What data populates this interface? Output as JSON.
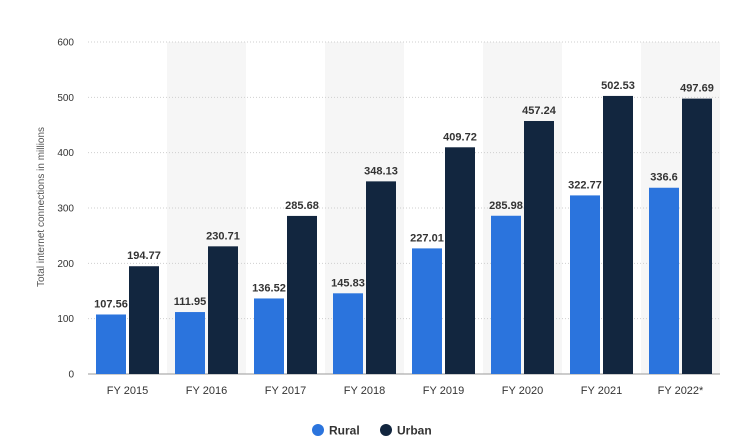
{
  "chart_data": {
    "type": "bar",
    "ylabel": "Total internet connections in millions",
    "categories": [
      "FY 2015",
      "FY 2016",
      "FY 2017",
      "FY 2018",
      "FY 2019",
      "FY 2020",
      "FY 2021",
      "FY 2022*"
    ],
    "series": [
      {
        "name": "Rural",
        "values": [
          107.56,
          111.95,
          136.52,
          145.83,
          227.01,
          285.98,
          322.77,
          336.6
        ],
        "labels": [
          "107.56",
          "111.95",
          "136.52",
          "145.83",
          "227.01",
          "285.98",
          "322.77",
          "336.6"
        ],
        "color": "#2b74dd"
      },
      {
        "name": "Urban",
        "values": [
          194.77,
          230.71,
          285.68,
          348.13,
          409.72,
          457.24,
          502.53,
          497.69
        ],
        "labels": [
          "194.77",
          "230.71",
          "285.68",
          "348.13",
          "409.72",
          "457.24",
          "502.53",
          "497.69"
        ],
        "color": "#12263f"
      }
    ],
    "ylim": [
      0,
      600
    ],
    "yticks": [
      "0",
      "100",
      "200",
      "300",
      "400",
      "500",
      "600"
    ],
    "grid": true,
    "legend_position": "bottom-center",
    "band_color": "#f6f6f6"
  }
}
